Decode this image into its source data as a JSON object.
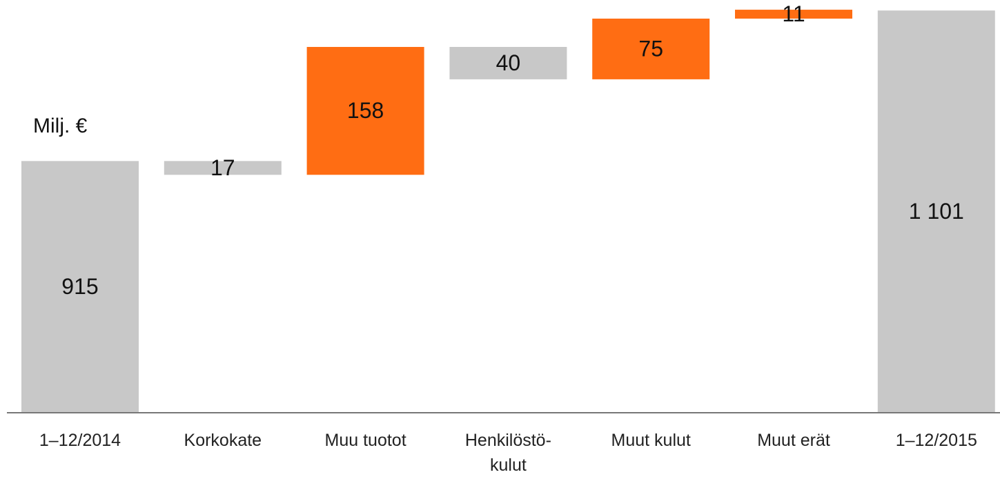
{
  "chart_data": {
    "type": "waterfall",
    "y_axis_label": "Milj. €",
    "categories": [
      "1–12/2014",
      "Korkokate",
      "Muu tuotot",
      "Henkilöstö-\nkulut",
      "Muut kulut",
      "Muut erät",
      "1–12/2015"
    ],
    "measure": [
      "absolute",
      "relative",
      "relative",
      "relative",
      "relative",
      "relative",
      "total"
    ],
    "values": [
      915,
      -17,
      158,
      -40,
      75,
      11,
      1101
    ],
    "value_labels": [
      "915",
      "17",
      "158",
      "40",
      "75",
      "11",
      "1 101"
    ],
    "colors": [
      "#c8c8c8",
      "#c8c8c8",
      "#ff6d13",
      "#c8c8c8",
      "#ff6d13",
      "#ff6d13",
      "#c8c8c8"
    ],
    "ylim": [
      604,
      1114
    ]
  }
}
